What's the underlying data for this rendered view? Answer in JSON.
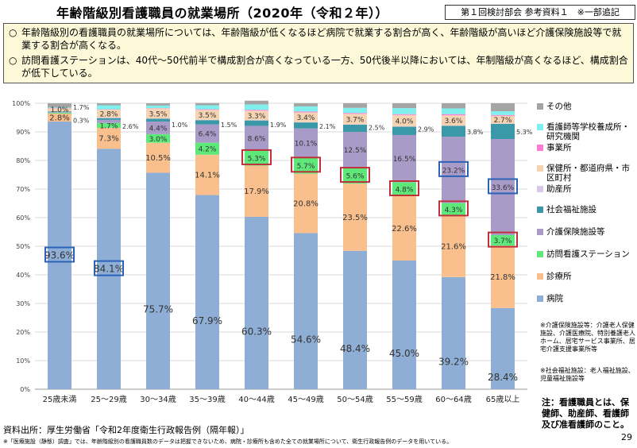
{
  "header": {
    "title": "年齢階級別看護職員の就業場所（2020年（令和２年））",
    "reference": "第１回検討部会 参考資料１　※一部追記"
  },
  "summary": [
    "年齢階級別の看護職員の就業場所については、年齢階級が低くなるほど病院で就業する割合が高く、年齢階級が高いほど介護保険施設等で就業する割合が高くなる。",
    "訪問看護ステーションは、40代〜50代前半で構成割合が高くなっている一方、50代後半以降においては、年制階級が高くなるほど、構成割合が低下している。"
  ],
  "summary_bullet": "○",
  "chart_data": {
    "type": "bar",
    "stacked": true,
    "categories": [
      "25歳未満",
      "25〜29歳",
      "30〜34歳",
      "35〜39歳",
      "40〜44歳",
      "45〜49歳",
      "50〜54歳",
      "55〜59歳",
      "60〜64歳",
      "65歳以上"
    ],
    "ylim": [
      0,
      100
    ],
    "yticks": [
      "0%",
      "10%",
      "20%",
      "30%",
      "40%",
      "50%",
      "60%",
      "70%",
      "80%",
      "90%",
      "100%"
    ],
    "grid": true,
    "legend_position": "right",
    "series": [
      {
        "name": "病院",
        "color": "#8faed6",
        "values": [
          93.6,
          84.1,
          75.7,
          67.9,
          60.3,
          54.6,
          48.4,
          45.0,
          39.2,
          28.4
        ],
        "labels": [
          "93.6%",
          "84.1%",
          "75.7%",
          "67.9%",
          "60.3%",
          "54.6%",
          "48.4%",
          "45.0%",
          "39.2%",
          "28.4%"
        ]
      },
      {
        "name": "診療所",
        "color": "#f9c08e",
        "values": [
          2.8,
          7.3,
          10.5,
          14.1,
          17.9,
          20.8,
          23.5,
          22.6,
          21.6,
          21.8
        ],
        "labels": [
          "2.8%",
          "7.3%",
          "10.5%",
          "14.1%",
          "17.9%",
          "20.8%",
          "23.5%",
          "22.6%",
          "21.6%",
          "21.8%"
        ]
      },
      {
        "name": "訪問看護ステーション",
        "color": "#5ee87a",
        "values": [
          0.3,
          1.7,
          3.0,
          4.2,
          5.3,
          5.7,
          5.6,
          4.8,
          4.3,
          3.7
        ],
        "labels": [
          "0.3%",
          "1.7%",
          "3.0%",
          "4.2%",
          "5.3%",
          "5.7%",
          "5.6%",
          "4.8%",
          "4.3%",
          "3.7%"
        ]
      },
      {
        "name": "介護保険施設等",
        "color": "#a99bc8",
        "values": [
          0.2,
          1.1,
          4.4,
          6.4,
          8.6,
          10.1,
          12.5,
          16.5,
          23.2,
          33.6
        ],
        "labels": [
          "",
          "",
          "4.4%",
          "6.4%",
          "8.6%",
          "10.1%",
          "12.5%",
          "16.5%",
          "23.2%",
          "33.6%"
        ]
      },
      {
        "name": "社会福祉施設",
        "color": "#3a98a8",
        "values": [
          0.2,
          0.6,
          1.0,
          1.5,
          1.9,
          2.1,
          2.5,
          2.9,
          3.8,
          5.3
        ],
        "labels": [
          "",
          "",
          "",
          "",
          "",
          "",
          "",
          "",
          "",
          ""
        ]
      },
      {
        "name": "助産所",
        "color": "#d9c7e8",
        "values": [
          0.1,
          0.2,
          0.1,
          0.1,
          0.1,
          0.1,
          0.1,
          0.1,
          0.1,
          0.1
        ],
        "labels": [
          "",
          "",
          "",
          "",
          "",
          "",
          "",
          "",
          "",
          ""
        ]
      },
      {
        "name": "保健所・都道府県・市区町村",
        "color": "#f6d4b3",
        "values": [
          1.0,
          2.8,
          3.5,
          3.5,
          3.3,
          3.4,
          3.7,
          4.0,
          3.6,
          2.7
        ],
        "labels": [
          "1.0%",
          "2.8%",
          "3.5%",
          "3.5%",
          "3.3%",
          "3.4%",
          "3.7%",
          "4.0%",
          "3.6%",
          "2.7%"
        ]
      },
      {
        "name": "事業所",
        "color": "#ff7bd6",
        "values": [
          0.1,
          0.1,
          0.1,
          0.2,
          0.3,
          0.3,
          0.3,
          0.3,
          0.4,
          0.3
        ],
        "labels": [
          "",
          "",
          "",
          "",
          "",
          "",
          "",
          "",
          "",
          ""
        ]
      },
      {
        "name": "看護師等学校養成所・研究機関",
        "color": "#7ff0ee",
        "values": [
          0.2,
          1.4,
          0.9,
          1.4,
          1.9,
          1.8,
          1.8,
          2.1,
          2.0,
          1.3
        ],
        "labels": [
          "",
          "",
          "",
          "",
          "",
          "",
          "",
          "",
          "",
          ""
        ]
      },
      {
        "name": "その他",
        "color": "#a5a5a5",
        "values": [
          1.5,
          0.7,
          0.8,
          0.8,
          1.3,
          1.1,
          1.6,
          1.7,
          1.8,
          2.8
        ],
        "labels": [
          "",
          "",
          "",
          "",
          "",
          "",
          "",
          "",
          "",
          ""
        ]
      }
    ],
    "side_labels": [
      {
        "cat": 0,
        "text": "1.7%",
        "y": 98.6
      },
      {
        "cat": 0,
        "text": "0.3%",
        "y": 94.0
      },
      {
        "cat": 1,
        "text": "2.6%",
        "y": 92.0
      },
      {
        "cat": 2,
        "text": "1.0%",
        "y": 92.5
      },
      {
        "cat": 3,
        "text": "1.5%",
        "y": 92.5
      },
      {
        "cat": 4,
        "text": "1.9%",
        "y": 92.5
      },
      {
        "cat": 5,
        "text": "2.1%",
        "y": 92.0
      },
      {
        "cat": 6,
        "text": "2.5%",
        "y": 91.5
      },
      {
        "cat": 7,
        "text": "2.9%",
        "y": 91.0
      },
      {
        "cat": 8,
        "text": "3.8%",
        "y": 90.0
      },
      {
        "cat": 9,
        "text": "5.3%",
        "y": 90.0
      }
    ],
    "highlighted": [
      {
        "series": 0,
        "cat": 0,
        "box": "blue"
      },
      {
        "series": 0,
        "cat": 1,
        "box": "blue"
      },
      {
        "series": 3,
        "cat": 8,
        "box": "blue"
      },
      {
        "series": 3,
        "cat": 9,
        "box": "blue"
      },
      {
        "series": 2,
        "cat": 4,
        "box": "red"
      },
      {
        "series": 2,
        "cat": 5,
        "box": "red"
      },
      {
        "series": 2,
        "cat": 6,
        "box": "red"
      },
      {
        "series": 2,
        "cat": 7,
        "box": "red"
      },
      {
        "series": 2,
        "cat": 8,
        "box": "red"
      },
      {
        "series": 2,
        "cat": 9,
        "box": "red"
      }
    ]
  },
  "legend_labels": {
    "other": "その他",
    "school": "看護師等学校養成所・研究機関",
    "office": "事業所",
    "public": "保健所・都道府県・市区町村",
    "midwife": "助産所",
    "welfare": "社会福祉施設",
    "care": "介護保険施設等",
    "visit": "訪問看護ステーション",
    "clinic": "診療所",
    "hospital": "病院"
  },
  "footnotes": {
    "care_def": "※介護保険施設等：介護老人保健施設、介護医療院、特別養護老人ホーム、居宅サービス事業所、居宅介護支援事業所等",
    "welfare_def": "※社会福祉施設：老人福祉施設、児童福祉施設等",
    "note": "注：看護職員とは、保健師、助産師、看護師及び准看護師のこと。",
    "source": "資料出所：厚生労働省「令和2年度衛生行政報告例（隔年報）」",
    "footnote": "※「医療施設（静態）調査」では、年齢階級別の看護職員数のデータは把握できないため、病院・診療所も含めた全ての就業場所について、衛生行政報告例のデータを用いている。",
    "page_number": "29"
  }
}
